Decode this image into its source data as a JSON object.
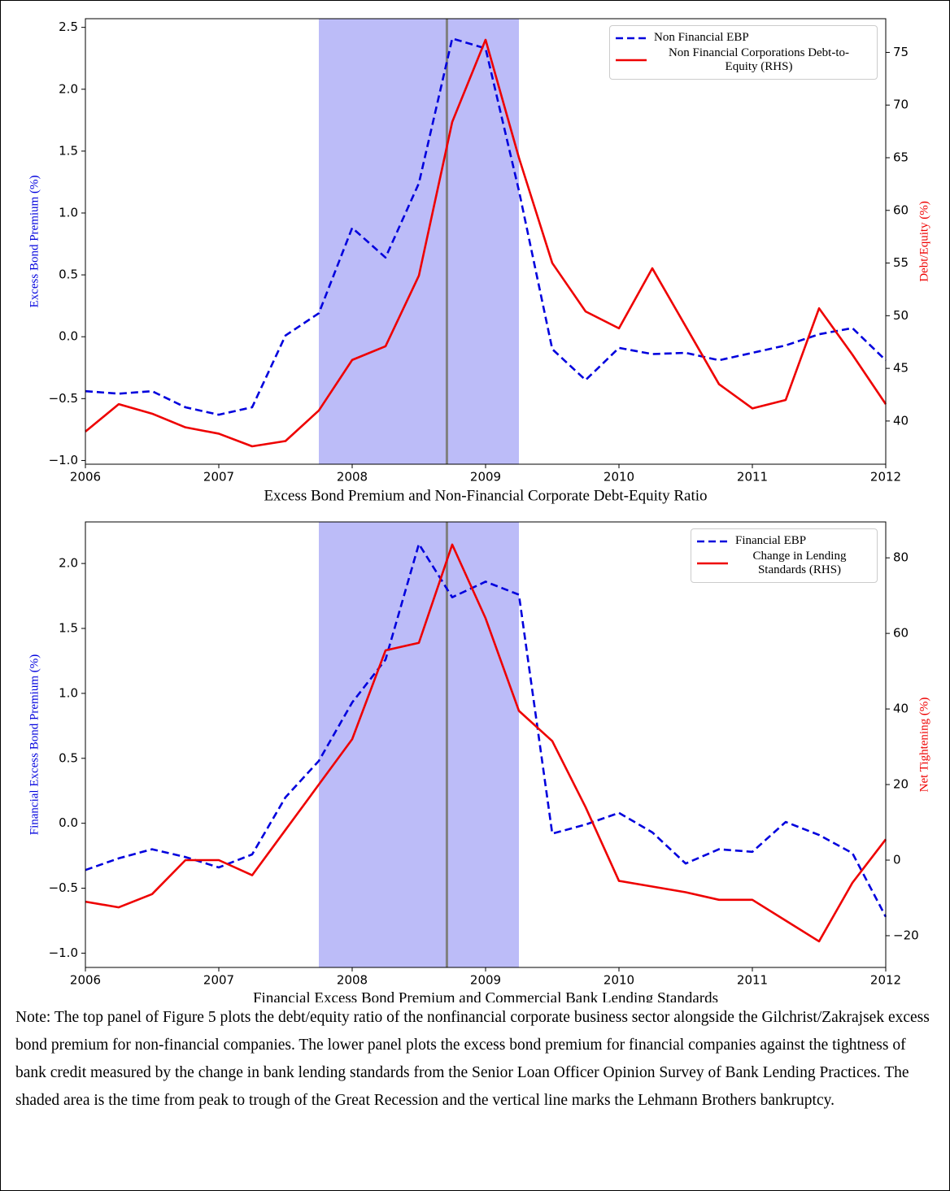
{
  "chart_data": [
    {
      "type": "line",
      "title": "Excess Bond Premium and Non-Financial Corporate Debt-Equity Ratio",
      "ylabel": "Excess Bond Premium (%)",
      "y2label": "Debt/Equity (%)",
      "x": [
        2006,
        2006.25,
        2006.5,
        2006.75,
        2007,
        2007.25,
        2007.5,
        2007.75,
        2008,
        2008.25,
        2008.5,
        2008.75,
        2009,
        2009.25,
        2009.5,
        2009.75,
        2010,
        2010.25,
        2010.5,
        2010.75,
        2011,
        2011.25,
        2011.5,
        2011.75,
        2012
      ],
      "series": [
        {
          "name": "Non Financial EBP",
          "color": "#0000dd",
          "linestyle": "dashed",
          "values": [
            -0.44,
            -0.46,
            -0.44,
            -0.57,
            -0.63,
            -0.57,
            0.01,
            0.19,
            0.88,
            0.64,
            1.24,
            2.41,
            2.33,
            1.18,
            -0.1,
            -0.35,
            -0.09,
            -0.14,
            -0.13,
            -0.19,
            -0.13,
            -0.07,
            0.02,
            0.07,
            -0.19
          ]
        },
        {
          "name": "Non Financial Corporations Debt-to-Equity (RHS)",
          "color": "#ee0000",
          "linestyle": "solid",
          "axis": "y2",
          "values": [
            39.0,
            41.6,
            40.7,
            39.4,
            38.8,
            37.6,
            38.1,
            41.0,
            45.8,
            47.1,
            53.8,
            68.4,
            76.2,
            65.0,
            55.0,
            50.4,
            48.8,
            54.5,
            49.0,
            43.5,
            41.2,
            42.0,
            50.7,
            46.3,
            41.6
          ]
        }
      ],
      "xlim": [
        2006,
        2012
      ],
      "xticks": [
        2006,
        2007,
        2008,
        2009,
        2010,
        2011,
        2012
      ],
      "ylim": [
        -1.03,
        2.57
      ],
      "yticks": [
        {
          "value": -1.0,
          "label": "−1.0"
        },
        {
          "value": -0.5,
          "label": "−0.5"
        },
        {
          "value": 0,
          "label": "0.0"
        },
        {
          "value": 0.5,
          "label": "0.5"
        },
        {
          "value": 1.0,
          "label": "1.0"
        },
        {
          "value": 1.5,
          "label": "1.5"
        },
        {
          "value": 2.0,
          "label": "2.0"
        },
        {
          "value": 2.5,
          "label": "2.5"
        }
      ],
      "y2lim": [
        35.9,
        78.2
      ],
      "y2ticks": [
        40,
        45,
        50,
        55,
        60,
        65,
        70,
        75
      ],
      "shade": [
        2007.75,
        2009.25
      ],
      "shade_color": "#bcbcf8",
      "vline": 2008.71,
      "vline_color": "#808080",
      "legend": "upper right"
    },
    {
      "type": "line",
      "title": "Financial Excess Bond Premium and Commercial Bank Lending Standards",
      "ylabel": "Financial Excess Bond Premium (%)",
      "y2label": "Net Tightening (%)",
      "x": [
        2006,
        2006.25,
        2006.5,
        2006.75,
        2007,
        2007.25,
        2007.5,
        2007.75,
        2008,
        2008.25,
        2008.5,
        2008.75,
        2009,
        2009.25,
        2009.5,
        2009.75,
        2010,
        2010.25,
        2010.5,
        2010.75,
        2011,
        2011.25,
        2011.5,
        2011.75,
        2012
      ],
      "series": [
        {
          "name": "Financial EBP",
          "color": "#0000dd",
          "linestyle": "dashed",
          "values": [
            -0.36,
            -0.27,
            -0.2,
            -0.26,
            -0.34,
            -0.24,
            0.2,
            0.48,
            0.93,
            1.26,
            2.15,
            1.74,
            1.86,
            1.76,
            -0.08,
            -0.01,
            0.08,
            -0.07,
            -0.31,
            -0.2,
            -0.22,
            0.01,
            -0.09,
            -0.23,
            -0.72
          ]
        },
        {
          "name": "Change in Lending Standards (RHS)",
          "color": "#ee0000",
          "linestyle": "solid",
          "axis": "y2",
          "values": [
            -11,
            -12.5,
            -9,
            0,
            0,
            -4,
            8,
            20,
            32,
            55.5,
            57.5,
            83.5,
            64,
            39.5,
            31.5,
            14,
            -5.5,
            -7,
            -8.5,
            -10.5,
            -10.5,
            -16,
            -21.5,
            -6,
            5.5
          ]
        }
      ],
      "xlim": [
        2006,
        2012
      ],
      "xticks": [
        2006,
        2007,
        2008,
        2009,
        2010,
        2011,
        2012
      ],
      "ylim": [
        -1.11,
        2.32
      ],
      "yticks": [
        {
          "value": -1.0,
          "label": "−1.0"
        },
        {
          "value": -0.5,
          "label": "−0.5"
        },
        {
          "value": 0,
          "label": "0.0"
        },
        {
          "value": 0.5,
          "label": "0.5"
        },
        {
          "value": 1.0,
          "label": "1.0"
        },
        {
          "value": 1.5,
          "label": "1.5"
        },
        {
          "value": 2.0,
          "label": "2.0"
        }
      ],
      "y2lim": [
        -28.4,
        89.5
      ],
      "y2ticks": [
        {
          "value": -20,
          "label": "−20"
        },
        0,
        20,
        40,
        60,
        80
      ],
      "shade": [
        2007.75,
        2009.25
      ],
      "shade_color": "#bcbcf8",
      "vline": 2008.71,
      "vline_color": "#808080",
      "legend": "upper right"
    }
  ],
  "note": "Note: The top panel of Figure 5 plots the debt/equity ratio of the nonfinancial corporate business sector alongside the Gilchrist/Zakrajsek excess bond premium for non-financial companies. The lower panel plots the excess bond premium for financial companies against the tightness of bank credit measured by the change in bank lending standards from the Senior Loan Officer Opinion Survey of Bank Lending Practices. The shaded area is the time from peak to trough of the Great Recession and the vertical line marks the Lehmann Brothers bankruptcy."
}
